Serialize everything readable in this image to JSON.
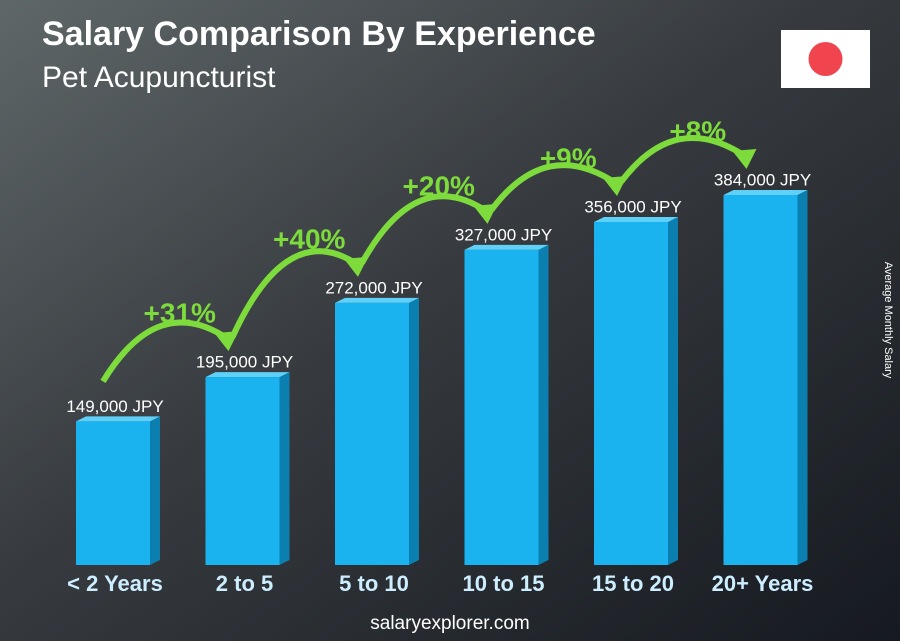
{
  "chart_data": {
    "type": "bar",
    "title": "Salary Comparison By Experience",
    "subtitle": "Pet Acupuncturist",
    "y_axis_label": "Average Monthly Salary",
    "categories": [
      "< 2 Years",
      "2 to 5",
      "5 to 10",
      "10 to 15",
      "15 to 20",
      "20+ Years"
    ],
    "values": [
      149000,
      195000,
      272000,
      327000,
      356000,
      384000
    ],
    "value_labels": [
      "149,000 JPY",
      "195,000 JPY",
      "272,000 JPY",
      "327,000 JPY",
      "356,000 JPY",
      "384,000 JPY"
    ],
    "changes": [
      "+31%",
      "+40%",
      "+20%",
      "+9%",
      "+8%"
    ],
    "color": "#1ab3ef",
    "change_color": "#7ddc3c",
    "website": "salaryexplorer.com"
  }
}
